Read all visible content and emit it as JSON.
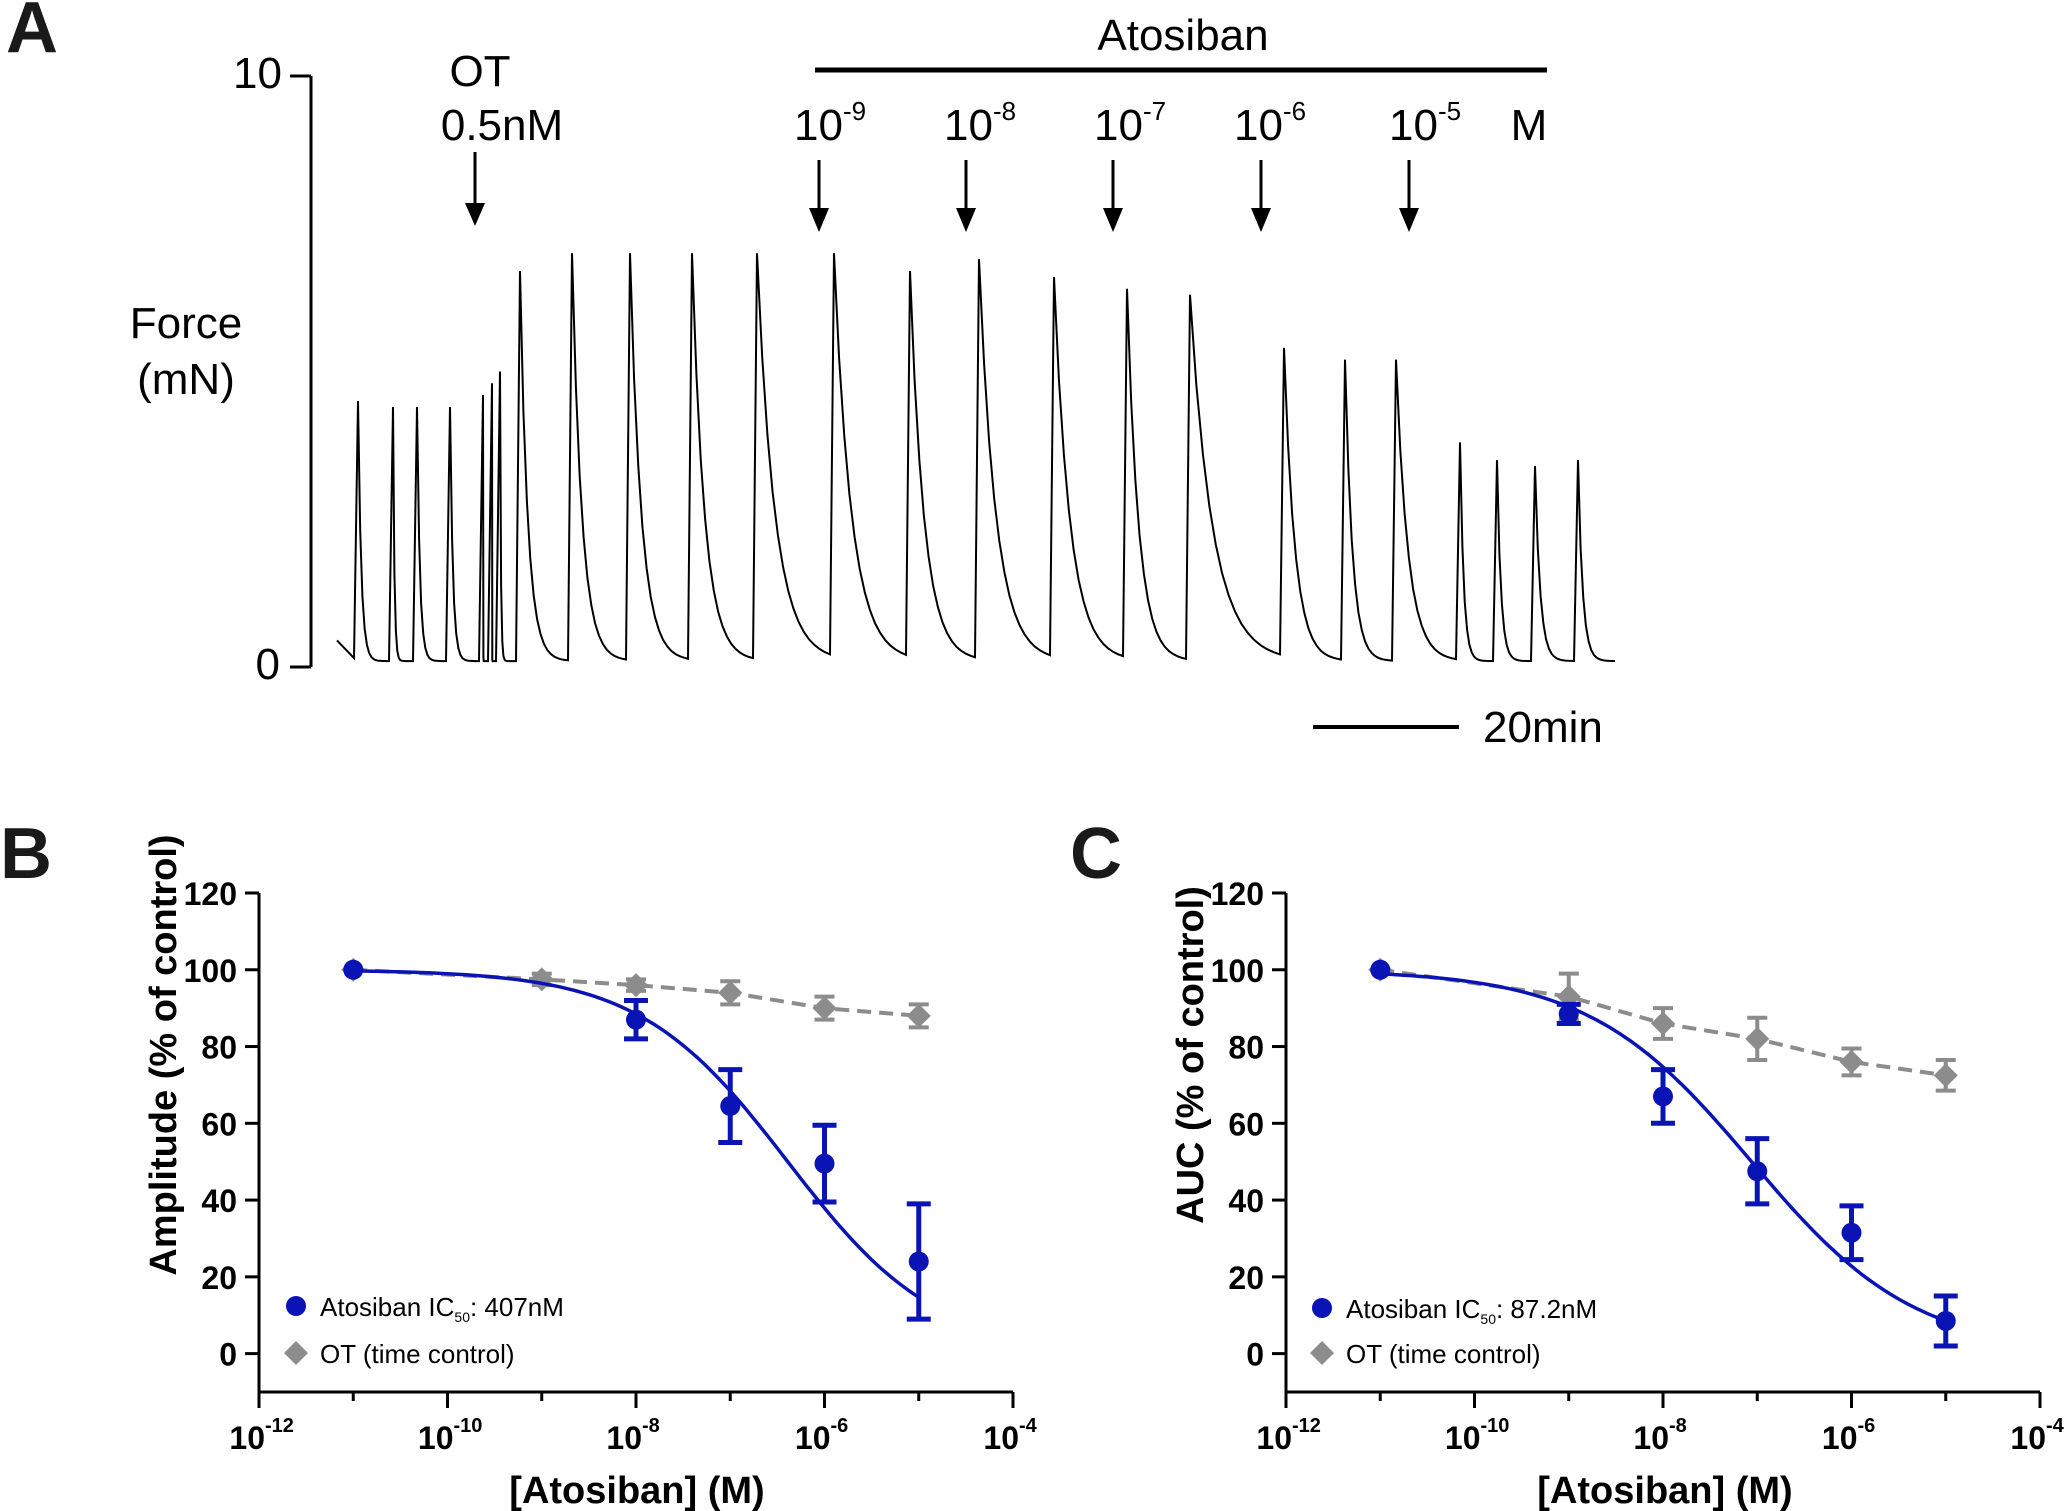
{
  "panel_labels": {
    "a": "A",
    "b": "B",
    "c": "C"
  },
  "colors": {
    "atosiban": "#0a14b4",
    "ot": "#8c8c8c",
    "trace": "#000000",
    "axis": "#000000"
  },
  "chart_data": [
    {
      "panel": "A",
      "type": "line",
      "description_kind": "force trace",
      "ylabel_line1": "Force",
      "ylabel_line2": "(mN)",
      "ylim": [
        0,
        10
      ],
      "y_tick_labels": [
        "0",
        "10"
      ],
      "scale_bar_label": "20min",
      "treatment_label": "Atosiban",
      "ot_label_line1": "OT",
      "ot_label_line2": "0.5nM",
      "dose_labels": [
        {
          "base": "10",
          "exp": "-9"
        },
        {
          "base": "10",
          "exp": "-8"
        },
        {
          "base": "10",
          "exp": "-7"
        },
        {
          "base": "10",
          "exp": "-6"
        },
        {
          "base": "10",
          "exp": "-5"
        }
      ],
      "dose_unit": "M",
      "peak_forces_mN": [
        4.5,
        4.4,
        4.4,
        4.4,
        4.6,
        4.8,
        5.0,
        6.7,
        7.0,
        7.0,
        7.0,
        7.0,
        7.0,
        6.7,
        6.9,
        6.6,
        6.4,
        6.3,
        5.4,
        5.2,
        5.2,
        3.8,
        3.5,
        3.4,
        3.5
      ]
    },
    {
      "panel": "B",
      "type": "line",
      "ylabel": "Amplitude (% of control)",
      "xlabel": "[Atosiban] (M)",
      "ylim": [
        -10,
        120
      ],
      "y_ticks": [
        0,
        20,
        40,
        60,
        80,
        100,
        120
      ],
      "xlim_log10": [
        -12,
        -4
      ],
      "x_tick_exponents": [
        "-12",
        "-10",
        "-8",
        "-6",
        "-4"
      ],
      "x_tick_base": "10",
      "series": [
        {
          "name": "Atosiban",
          "legend_prefix": "Atosiban IC",
          "legend_sub": "50",
          "legend_suffix": ": 407nM",
          "marker": "circle",
          "log10_x": [
            -11,
            -8,
            -7,
            -6,
            -5
          ],
          "y": [
            100,
            87,
            64.5,
            49.5,
            24
          ],
          "err": [
            0,
            5,
            9.5,
            10,
            15
          ],
          "fit": {
            "top": 100,
            "bottom": 0,
            "log_ic50": -6.39,
            "hill": 0.55
          }
        },
        {
          "name": "OT (time control)",
          "legend_text": "OT (time control)",
          "marker": "diamond",
          "log10_x": [
            -11,
            -9,
            -8,
            -7,
            -6,
            -5
          ],
          "y": [
            100,
            97.5,
            96,
            94,
            90,
            88
          ],
          "err": [
            0,
            1.5,
            1.5,
            3,
            3,
            3
          ]
        }
      ]
    },
    {
      "panel": "C",
      "type": "line",
      "ylabel": "AUC (% of control)",
      "xlabel": "[Atosiban] (M)",
      "ylim": [
        -10,
        120
      ],
      "y_ticks": [
        0,
        20,
        40,
        60,
        80,
        100,
        120
      ],
      "xlim_log10": [
        -12,
        -4
      ],
      "x_tick_exponents": [
        "-12",
        "-10",
        "-8",
        "-6",
        "-4"
      ],
      "x_tick_base": "10",
      "series": [
        {
          "name": "Atosiban",
          "legend_prefix": "Atosiban IC",
          "legend_sub": "50",
          "legend_suffix": ": 87.2nM",
          "marker": "circle",
          "log10_x": [
            -11,
            -9,
            -8,
            -7,
            -6,
            -5
          ],
          "y": [
            100,
            88.5,
            67,
            47.5,
            31.5,
            8.5
          ],
          "err": [
            0,
            2.5,
            7,
            8.5,
            7,
            6.5
          ],
          "fit": {
            "top": 100,
            "bottom": 0,
            "log_ic50": -7.06,
            "hill": 0.5
          }
        },
        {
          "name": "OT (time control)",
          "legend_text": "OT (time control)",
          "marker": "diamond",
          "log10_x": [
            -11,
            -9,
            -8,
            -7,
            -6,
            -5
          ],
          "y": [
            100,
            93,
            86,
            82,
            76,
            72.5
          ],
          "err": [
            0,
            6,
            4,
            5.5,
            3.5,
            4
          ]
        }
      ]
    }
  ]
}
